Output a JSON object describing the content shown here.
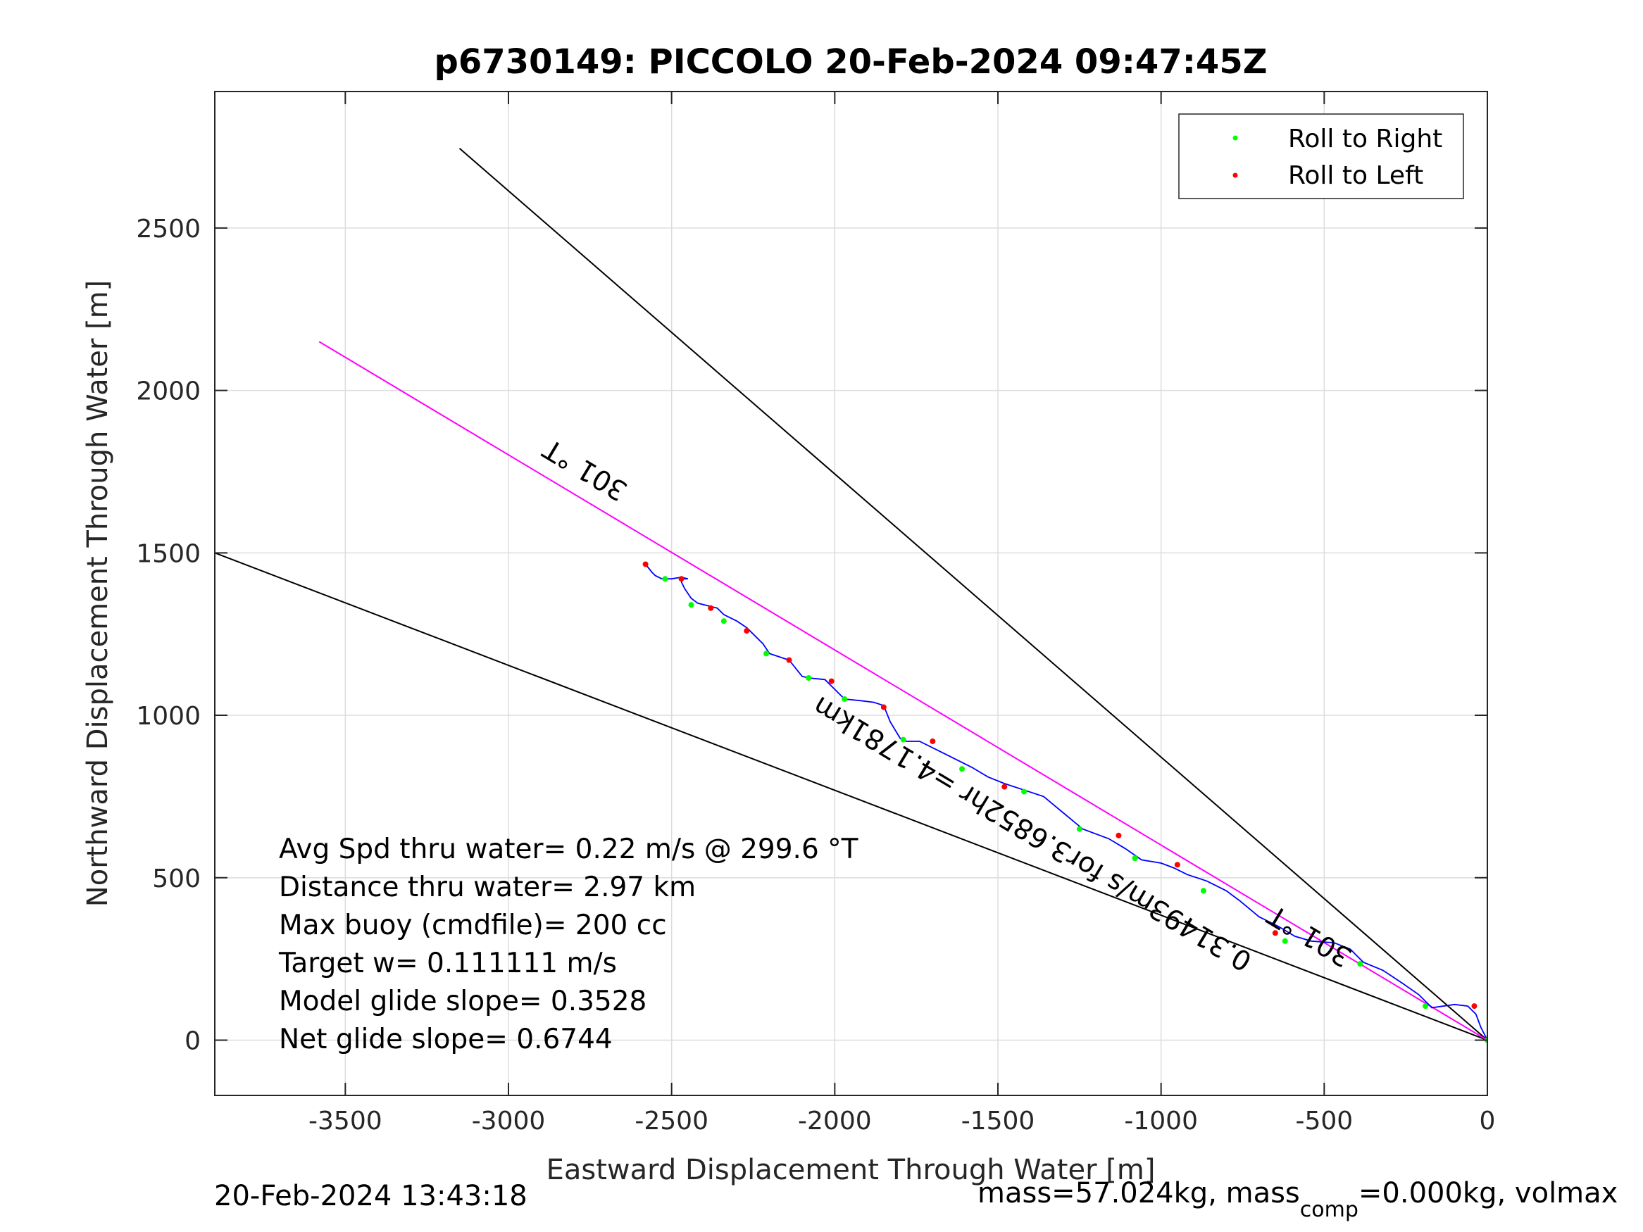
{
  "chart_data": {
    "type": "line",
    "title": "p6730149: PICCOLO 20-Feb-2024 09:47:45Z",
    "xlabel": "Eastward Displacement Through Water [m]",
    "ylabel": "Northward Displacement Through Water [m]",
    "xlim": [
      -3900,
      0
    ],
    "ylim": [
      -170,
      2920
    ],
    "xticks": [
      -3500,
      -3000,
      -2500,
      -2000,
      -1500,
      -1000,
      -500,
      0
    ],
    "yticks": [
      0,
      500,
      1000,
      1500,
      2000,
      2500
    ],
    "grid": true,
    "legend": {
      "placement": "top-right",
      "entries": [
        {
          "label": "Roll to Right",
          "color": "#00ff00"
        },
        {
          "label": "Roll to Left",
          "color": "#ff0000"
        }
      ]
    },
    "colors": {
      "track": "#0000ff",
      "heading_line": "#ff00ff",
      "cone_lines": "#000000",
      "roll_right": "#00ff00",
      "roll_left": "#ff0000"
    },
    "track": {
      "x": [
        0,
        -20,
        -35,
        -60,
        -100,
        -170,
        -210,
        -260,
        -320,
        -380,
        -420,
        -470,
        -540,
        -590,
        -640,
        -700,
        -760,
        -800,
        -860,
        -920,
        -960,
        -1000,
        -1060,
        -1110,
        -1160,
        -1240,
        -1300,
        -1360,
        -1420,
        -1480,
        -1530,
        -1580,
        -1620,
        -1660,
        -1700,
        -1740,
        -1780,
        -1800,
        -1830,
        -1850,
        -1880,
        -1920,
        -1970,
        -2000,
        -2030,
        -2080,
        -2100,
        -2140,
        -2170,
        -2200,
        -2220,
        -2250,
        -2270,
        -2300,
        -2340,
        -2360,
        -2380,
        -2420,
        -2440,
        -2460,
        -2470,
        -2465,
        -2450,
        -2470,
        -2500,
        -2530,
        -2550,
        -2560,
        -2580
      ],
      "y": [
        0,
        40,
        80,
        105,
        110,
        100,
        140,
        175,
        215,
        240,
        280,
        300,
        305,
        320,
        350,
        380,
        430,
        460,
        490,
        510,
        530,
        545,
        555,
        590,
        620,
        650,
        700,
        750,
        770,
        790,
        810,
        840,
        860,
        880,
        900,
        920,
        920,
        930,
        980,
        1030,
        1040,
        1045,
        1050,
        1080,
        1110,
        1115,
        1120,
        1170,
        1180,
        1190,
        1220,
        1250,
        1270,
        1290,
        1310,
        1330,
        1335,
        1345,
        1360,
        1390,
        1410,
        1420,
        1420,
        1425,
        1420,
        1420,
        1430,
        1440,
        1465
      ]
    },
    "roll_right_points": {
      "x": [
        -2520,
        -2440,
        -2340,
        -2210,
        -2080,
        -1970,
        -1790,
        -1610,
        -1420,
        -1250,
        -1080,
        -870,
        -620,
        -390,
        -190,
        0
      ],
      "y": [
        1420,
        1340,
        1290,
        1190,
        1115,
        1050,
        925,
        835,
        765,
        650,
        560,
        460,
        305,
        235,
        105,
        0
      ]
    },
    "roll_left_points": {
      "x": [
        -2580,
        -2470,
        -2380,
        -2270,
        -2140,
        -2010,
        -1850,
        -1700,
        -1480,
        -1130,
        -950,
        -650,
        -40
      ],
      "y": [
        1465,
        1420,
        1330,
        1260,
        1170,
        1105,
        1025,
        920,
        780,
        630,
        540,
        330,
        105
      ]
    },
    "lines": [
      {
        "name": "cone-upper",
        "x": [
          0,
          -3150
        ],
        "y": [
          0,
          2745
        ]
      },
      {
        "name": "cone-lower",
        "x": [
          0,
          -3900
        ],
        "y": [
          0,
          1500
        ]
      },
      {
        "name": "mean-heading",
        "x": [
          0,
          -3580
        ],
        "y": [
          0,
          2150
        ]
      }
    ],
    "line_labels": [
      {
        "text": "301 °T",
        "x": -2750,
        "y": 1780,
        "angle": 31
      },
      {
        "text": "301 °T",
        "x": -530,
        "y": 345,
        "angle": 31
      },
      {
        "text": "0.31493m/s for3.6852hr =4.1781km",
        "x": -1380,
        "y": 660,
        "angle": 31
      }
    ],
    "stats": [
      "Avg Spd thru water=  0.22 m/s @ 299.6 °T",
      "Distance thru water=  2.97 km",
      "Max buoy (cmdfile)= 200 cc",
      "Target w= 0.111111 m/s",
      "Model glide slope= 0.3528",
      "Net glide slope= 0.6744"
    ]
  },
  "footer": {
    "timestamp": "20-Feb-2024 13:43:18",
    "mass_prefix": "mass=57.024kg, mass",
    "mass_sub": "comp",
    "mass_suffix": "=0.000kg, volmax"
  }
}
